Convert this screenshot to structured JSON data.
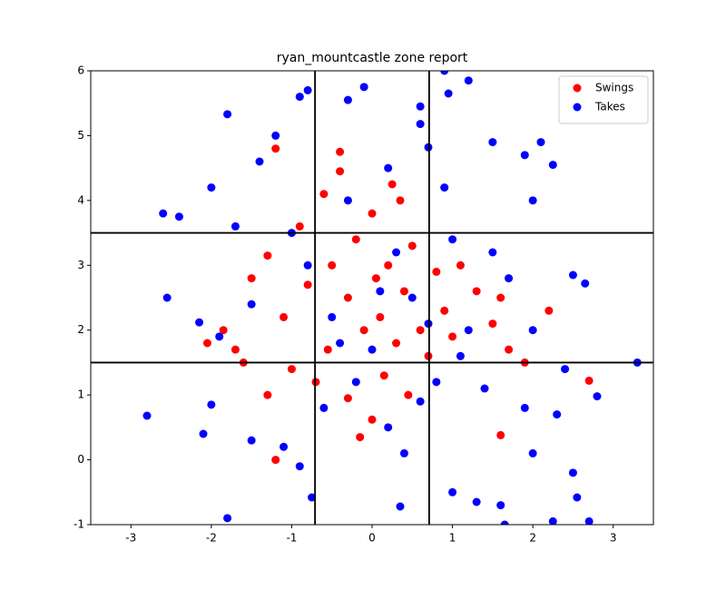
{
  "chart_data": {
    "type": "scatter",
    "title": "ryan_mountcastle zone report",
    "xlim": [
      -3.5,
      3.5
    ],
    "ylim": [
      -1,
      6
    ],
    "xticks": [
      -3,
      -2,
      -1,
      0,
      1,
      2,
      3
    ],
    "yticks": [
      -1,
      0,
      1,
      2,
      3,
      4,
      5,
      6
    ],
    "vlines": [
      -0.71,
      0.71
    ],
    "hlines": [
      1.5,
      3.5
    ],
    "legend": "upper right",
    "series": [
      {
        "name": "Swings",
        "color": "#ff0000",
        "x": [
          -1.2,
          -0.4,
          -0.4,
          0.25,
          -1.2,
          -0.15,
          2.7,
          2.2,
          -2.05,
          -1.85,
          -1.7,
          0.0,
          1.6,
          -1.5,
          -1.3,
          -1.1,
          -0.9,
          -0.6,
          -0.5,
          -0.3,
          -0.2,
          0.0,
          0.1,
          0.2,
          0.3,
          0.4,
          0.5,
          0.6,
          0.7,
          0.8,
          0.9,
          1.0,
          1.1,
          1.3,
          1.5,
          1.7,
          1.9,
          -0.7,
          -0.8,
          -1.0,
          0.15,
          0.35,
          -0.1,
          -0.55,
          0.05,
          -1.6,
          1.6,
          -0.3,
          0.45,
          -1.3
        ],
        "values": [
          4.8,
          4.75,
          4.45,
          4.25,
          0,
          0.35,
          1.22,
          2.3,
          1.8,
          2.0,
          1.7,
          0.62,
          0.38,
          2.8,
          3.15,
          2.2,
          3.6,
          4.1,
          3.0,
          2.5,
          3.4,
          3.8,
          2.2,
          3.0,
          1.8,
          2.6,
          3.3,
          2.0,
          1.6,
          2.9,
          2.3,
          1.9,
          3.0,
          2.6,
          2.1,
          1.7,
          1.5,
          1.2,
          2.7,
          1.4,
          1.3,
          4.0,
          2.0,
          1.7,
          2.8,
          1.5,
          2.5,
          0.95,
          1.0,
          1.0
        ]
      },
      {
        "name": "Takes",
        "color": "#0000ff",
        "x": [
          -2.8,
          -2.55,
          -2.6,
          -2.4,
          -1.8,
          -1.8,
          -0.8,
          -0.9,
          -0.1,
          0.9,
          1.2,
          0.95,
          3.3,
          2.8,
          2.7,
          2.5,
          2.55,
          2.25,
          1.65,
          -0.75,
          -2.1,
          -2.0,
          2.1,
          2.25,
          1.9,
          1.5,
          2.65,
          2.5,
          0.35,
          0.6,
          0.6,
          0.7,
          -0.3,
          -1.4,
          -1.2,
          2.0,
          -2.15,
          -1.9,
          -2.0,
          -1.5,
          1.0,
          1.3,
          1.6,
          2.0,
          2.3,
          -1.0,
          -0.5,
          0.0,
          0.3,
          0.5,
          0.8,
          1.0,
          1.2,
          1.4,
          1.7,
          -0.6,
          -0.2,
          0.2,
          0.6,
          -1.1,
          -0.3,
          0.2,
          0.9,
          -0.8,
          -0.4,
          0.1,
          0.7,
          1.1,
          1.5,
          -1.5,
          2.0,
          2.4,
          -0.9,
          0.4,
          1.9,
          -1.7
        ],
        "values": [
          0.68,
          2.5,
          3.8,
          3.75,
          5.33,
          -0.9,
          5.7,
          5.6,
          5.75,
          6.0,
          5.85,
          5.65,
          1.5,
          0.98,
          -0.95,
          -0.2,
          -0.58,
          -0.95,
          -1.0,
          -0.58,
          0.4,
          4.2,
          4.9,
          4.55,
          4.7,
          4.9,
          2.72,
          2.85,
          -0.72,
          5.45,
          5.18,
          4.82,
          5.55,
          4.6,
          5.0,
          4.0,
          2.12,
          1.9,
          0.85,
          0.3,
          -0.5,
          -0.65,
          -0.7,
          0.1,
          0.7,
          3.5,
          2.2,
          1.7,
          3.2,
          2.5,
          1.2,
          3.4,
          2.0,
          1.1,
          2.8,
          0.8,
          1.2,
          0.5,
          0.9,
          0.2,
          4.0,
          4.5,
          4.2,
          3.0,
          1.8,
          2.6,
          2.1,
          1.6,
          3.2,
          2.4,
          2.0,
          1.4,
          -0.1,
          0.1,
          0.8,
          3.6
        ]
      }
    ]
  }
}
